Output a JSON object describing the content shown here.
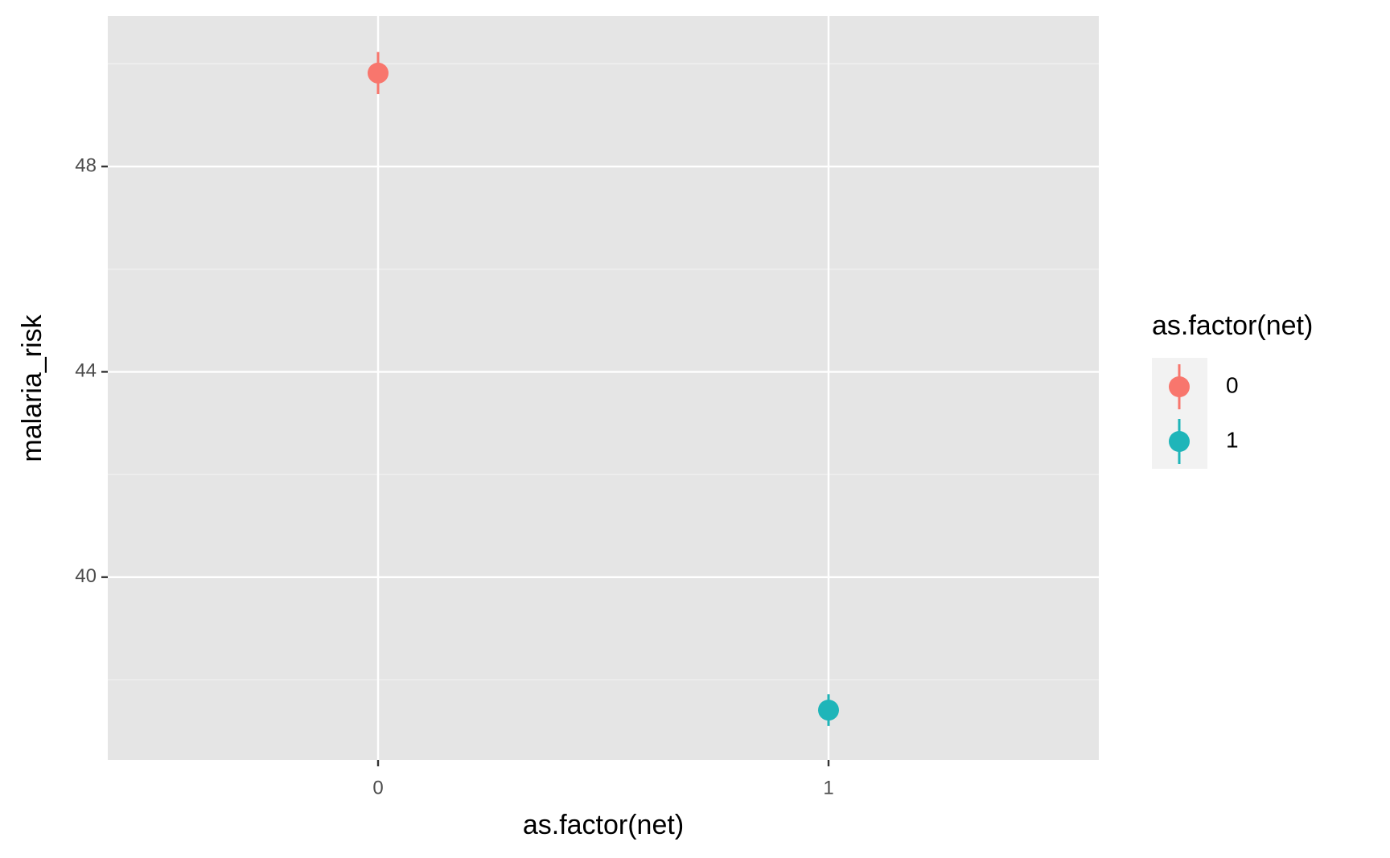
{
  "chart_data": {
    "type": "pointrange",
    "x_label": "as.factor(net)",
    "y_label": "malaria_risk",
    "categories": [
      "0",
      "1"
    ],
    "series": [
      {
        "name": "0",
        "color": "#f8766d",
        "values": [
          49.82,
          null
        ],
        "errors": [
          0.41,
          null
        ]
      },
      {
        "name": "1",
        "color": "#1fb5b9",
        "values": [
          null,
          37.41
        ],
        "errors": [
          null,
          0.31
        ]
      }
    ],
    "ylim": [
      36.44,
      50.93
    ],
    "yticks": [
      40,
      44,
      48
    ],
    "y_minor_gridlines": [
      38,
      42,
      46,
      50
    ],
    "grid": true,
    "legend_title": "as.factor(net)",
    "legend_position": "right"
  }
}
